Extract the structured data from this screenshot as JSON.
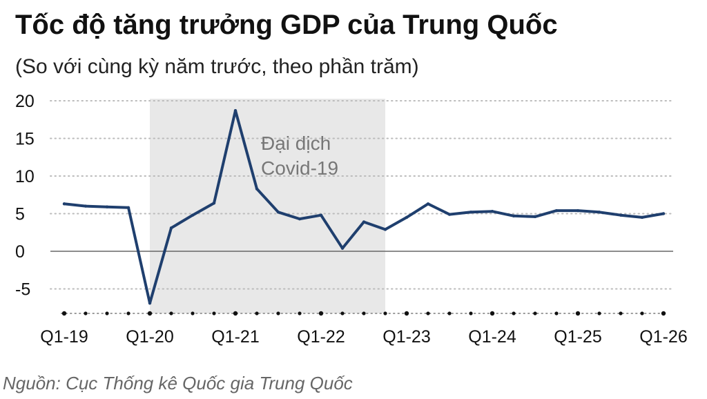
{
  "title": "Tốc độ tăng trưởng GDP của Trung Quốc",
  "subtitle": "(So với cùng kỳ năm trước, theo phần trăm)",
  "source": "Nguồn: Cục Thống kê Quốc gia Trung Quốc",
  "chart_data": {
    "type": "line",
    "title": "Tốc độ tăng trưởng GDP của Trung Quốc",
    "subtitle": "(So với cùng kỳ năm trước, theo phần trăm)",
    "xlabel": "",
    "ylabel": "",
    "ylim": [
      -8,
      20
    ],
    "yticks": [
      20,
      15,
      10,
      5,
      0,
      -5
    ],
    "ytick_labels": [
      "20",
      "15",
      "10",
      "5",
      "0",
      "-5"
    ],
    "xlim": [
      2019.0,
      2026.0
    ],
    "xticks": [
      2019,
      2020,
      2021,
      2022,
      2023,
      2024,
      2025,
      2026
    ],
    "xtick_labels": [
      "Q1-19",
      "Q1-20",
      "Q1-21",
      "Q1-22",
      "Q1-23",
      "Q1-24",
      "Q1-25",
      "Q1-26"
    ],
    "grid": "horizontal-dotted",
    "shaded_region": {
      "x_start": 2020.0,
      "x_end": 2022.75,
      "label_lines": [
        "Đại dịch",
        "Covid-19"
      ],
      "color": "#e8e8e8"
    },
    "line_color": "#1f3f6e",
    "series": [
      {
        "x": [
          2019.0,
          2019.25,
          2019.5,
          2019.75,
          2020.0,
          2020.25,
          2020.5,
          2020.75,
          2021.0,
          2021.25,
          2021.5,
          2021.75,
          2022.0,
          2022.25,
          2022.5,
          2022.75,
          2023.0,
          2023.25,
          2023.5,
          2023.75,
          2024.0,
          2024.25,
          2024.5,
          2024.75,
          2025.0,
          2025.25,
          2025.5,
          2025.75,
          2026.0
        ],
        "values": [
          6.3,
          6.0,
          5.9,
          5.8,
          -6.9,
          3.1,
          4.8,
          6.4,
          18.7,
          8.3,
          5.2,
          4.3,
          4.8,
          0.4,
          3.9,
          2.9,
          4.5,
          6.3,
          4.9,
          5.2,
          5.3,
          4.7,
          4.6,
          5.4,
          5.4,
          5.2,
          4.8,
          4.5,
          5.0
        ]
      }
    ]
  }
}
